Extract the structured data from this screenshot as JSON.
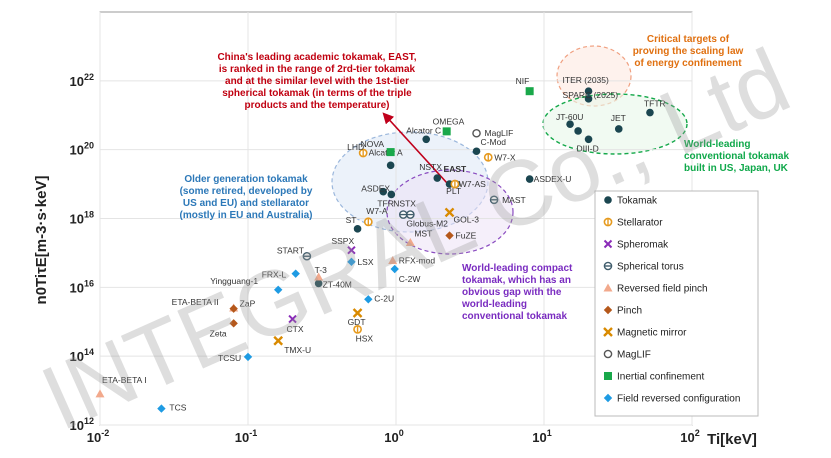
{
  "chart_data": {
    "type": "scatter",
    "xlabel": "Ti[keV]",
    "ylabel": "n0TiτE[m-3·s·keV]",
    "x_scale": "log",
    "y_scale": "log",
    "xlim": [
      0.01,
      100
    ],
    "ylim": [
      1000000000000.0,
      1e+24
    ],
    "x_ticks": [
      {
        "value": 0.01,
        "base": "10",
        "exp": "-2"
      },
      {
        "value": 0.1,
        "base": "10",
        "exp": "-1"
      },
      {
        "value": 1,
        "base": "10",
        "exp": "0"
      },
      {
        "value": 10,
        "base": "10",
        "exp": "1"
      },
      {
        "value": 100,
        "base": "10",
        "exp": "2"
      }
    ],
    "y_ticks": [
      {
        "value": 1000000000000.0,
        "base": "10",
        "exp": "12"
      },
      {
        "value": 100000000000000.0,
        "base": "10",
        "exp": "14"
      },
      {
        "value": 1e+16,
        "base": "10",
        "exp": "16"
      },
      {
        "value": 1e+18,
        "base": "10",
        "exp": "18"
      },
      {
        "value": 1e+20,
        "base": "10",
        "exp": "20"
      },
      {
        "value": 1e+22,
        "base": "10",
        "exp": "22"
      }
    ],
    "legend": {
      "position": "right",
      "entries": [
        {
          "key": "tokamak",
          "label": "Tokamak"
        },
        {
          "key": "stellarator",
          "label": "Stellarator"
        },
        {
          "key": "spheromak",
          "label": "Spheromak"
        },
        {
          "key": "spherical_torus",
          "label": "Spherical torus"
        },
        {
          "key": "rfp",
          "label": "Reversed field pinch"
        },
        {
          "key": "pinch",
          "label": "Pinch"
        },
        {
          "key": "mirror",
          "label": "Magnetic mirror"
        },
        {
          "key": "maglif",
          "label": "MagLIF"
        },
        {
          "key": "inertial",
          "label": "Inertial confinement"
        },
        {
          "key": "frc",
          "label": "Field reversed configuration"
        }
      ]
    },
    "colors": {
      "tokamak": "#1b4650",
      "stellarator": "#e69a1e",
      "spheromak": "#8a2bb8",
      "spherical_torus": "#3f5c6b",
      "rfp": "#f2a98c",
      "pinch": "#b5581b",
      "mirror": "#d98a00",
      "maglif": "#555555",
      "inertial": "#19a84a",
      "frc": "#1e9be3",
      "east_label": "#d0021b",
      "arrow": "#c0001b",
      "ann_red": "#c00010",
      "ann_orange": "#e07010",
      "ann_green": "#0fa84a",
      "ann_blue": "#2c78b8",
      "ann_purple": "#7a2cc0"
    },
    "points": [
      {
        "name": "ITER (2035)",
        "x": 20,
        "y": 5e+21,
        "type": "tokamak"
      },
      {
        "name": "SPARC (2025)",
        "x": 20,
        "y": 3e+21,
        "type": "tokamak"
      },
      {
        "name": "TFTR",
        "x": 52,
        "y": 1.2e+21,
        "type": "tokamak"
      },
      {
        "name": "JT-60U",
        "x": 15,
        "y": 5.5e+20,
        "type": "tokamak"
      },
      {
        "name": "",
        "x": 17,
        "y": 3.5e+20,
        "type": "tokamak"
      },
      {
        "name": "JET",
        "x": 32,
        "y": 4e+20,
        "type": "tokamak"
      },
      {
        "name": "DIII-D",
        "x": 20,
        "y": 2e+20,
        "type": "tokamak"
      },
      {
        "name": "ASDEX-U",
        "x": 8,
        "y": 1.4e+19,
        "type": "tokamak"
      },
      {
        "name": "Alcator C",
        "x": 1.6,
        "y": 2e+20,
        "type": "tokamak"
      },
      {
        "name": "C-Mod",
        "x": 3.5,
        "y": 9e+19,
        "type": "tokamak"
      },
      {
        "name": "Alcator A",
        "x": 0.92,
        "y": 3.5e+19,
        "type": "tokamak"
      },
      {
        "name": "NSTX",
        "x": 1.9,
        "y": 1.5e+19,
        "type": "tokamak"
      },
      {
        "name": "EAST",
        "x": 2.3,
        "y": 1e+19,
        "type": "tokamak"
      },
      {
        "name": "PLT",
        "x": 2.55,
        "y": 1e+19,
        "type": "tokamak"
      },
      {
        "name": "ASDEX",
        "x": 0.82,
        "y": 6e+18,
        "type": "tokamak"
      },
      {
        "name": "TFR",
        "x": 0.93,
        "y": 5e+18,
        "type": "tokamak"
      },
      {
        "name": "ST",
        "x": 0.55,
        "y": 5e+17,
        "type": "tokamak"
      },
      {
        "name": "ZT-40M",
        "x": 0.3,
        "y": 1.3e+16,
        "type": "tokamak"
      },
      {
        "name": "LHD",
        "x": 0.6,
        "y": 8e+19,
        "type": "stellarator"
      },
      {
        "name": "W7-X",
        "x": 4.2,
        "y": 6e+19,
        "type": "stellarator"
      },
      {
        "name": "W7-AS",
        "x": 2.5,
        "y": 1e+19,
        "type": "stellarator"
      },
      {
        "name": "W7-A",
        "x": 0.65,
        "y": 8e+17,
        "type": "stellarator"
      },
      {
        "name": "HSX",
        "x": 0.55,
        "y": 600000000000000.0,
        "type": "stellarator"
      },
      {
        "name": "SSPX",
        "x": 0.5,
        "y": 1.2e+17,
        "type": "spheromak"
      },
      {
        "name": "CTX",
        "x": 0.2,
        "y": 1200000000000000.0,
        "type": "spheromak"
      },
      {
        "name": "MAST",
        "x": 4.6,
        "y": 3.5e+18,
        "type": "spherical_torus"
      },
      {
        "name": "NSTX",
        "x": 1.12,
        "y": 1.3e+18,
        "type": "spherical_torus"
      },
      {
        "name": "Globus-M2",
        "x": 1.25,
        "y": 1.3e+18,
        "type": "spherical_torus"
      },
      {
        "name": "START",
        "x": 0.25,
        "y": 8e+16,
        "type": "spherical_torus"
      },
      {
        "name": "RFX-mod",
        "x": 0.95,
        "y": 6e+16,
        "type": "rfp"
      },
      {
        "name": "MST",
        "x": 1.25,
        "y": 2e+17,
        "type": "rfp"
      },
      {
        "name": "T-3",
        "x": 0.3,
        "y": 2e+16,
        "type": "rfp"
      },
      {
        "name": "ETA-BETA II",
        "x": 0.08,
        "y": 2500000000000000.0,
        "type": "rfp"
      },
      {
        "name": "ETA-BETA I",
        "x": 0.01,
        "y": 8000000000000.0,
        "type": "rfp"
      },
      {
        "name": "ZaP",
        "x": 0.08,
        "y": 2400000000000000.0,
        "type": "pinch"
      },
      {
        "name": "Zeta",
        "x": 0.08,
        "y": 900000000000000.0,
        "type": "pinch"
      },
      {
        "name": "FuZE",
        "x": 2.3,
        "y": 3.2e+17,
        "type": "pinch"
      },
      {
        "name": "GOL-3",
        "x": 2.3,
        "y": 1.5e+18,
        "type": "mirror"
      },
      {
        "name": "GDT",
        "x": 0.55,
        "y": 1800000000000000.0,
        "type": "mirror"
      },
      {
        "name": "TMX-U",
        "x": 0.16,
        "y": 280000000000000.0,
        "type": "mirror"
      },
      {
        "name": "MagLIF",
        "x": 3.5,
        "y": 3e+20,
        "type": "maglif"
      },
      {
        "name": "OMEGA",
        "x": 2.2,
        "y": 3.4e+20,
        "type": "inertial"
      },
      {
        "name": "NOVA",
        "x": 0.92,
        "y": 8.5e+19,
        "type": "inertial"
      },
      {
        "name": "NIF",
        "x": 8,
        "y": 5e+21,
        "type": "inertial"
      },
      {
        "name": "FRX-L",
        "x": 0.21,
        "y": 2.5e+16,
        "type": "frc"
      },
      {
        "name": "LSX",
        "x": 0.5,
        "y": 5.5e+16,
        "type": "frc"
      },
      {
        "name": "C-2W",
        "x": 0.98,
        "y": 3.4e+16,
        "type": "frc"
      },
      {
        "name": "Yingguang-1",
        "x": 0.16,
        "y": 8500000000000000.0,
        "type": "frc"
      },
      {
        "name": "C-2U",
        "x": 0.65,
        "y": 4500000000000000.0,
        "type": "frc"
      },
      {
        "name": "TCSU",
        "x": 0.1,
        "y": 95000000000000.0,
        "type": "frc"
      },
      {
        "name": "TCS",
        "x": 0.026,
        "y": 3000000000000.0,
        "type": "frc"
      }
    ],
    "annotations": {
      "china": [
        "China's leading academic tokamak, EAST,",
        "is ranked in the range of 2rd-tier tokamak",
        "and at the similar level with the 1st-tier",
        "spherical tokamak (in terms of the triple",
        "products and the temperature)"
      ],
      "critical": [
        "Critical targets of",
        "proving the scaling law",
        "of energy confinement"
      ],
      "world_conv": [
        "World-leading",
        "conventional tokamak",
        "built in US, Japan, UK"
      ],
      "older": [
        "Older generation tokamak",
        "(some retired, developed by",
        "US and EU) and stellarator",
        "(mostly in EU and Australia)"
      ],
      "compact": [
        "World-leading compact",
        "tokamak, which has an",
        "obvious gap with the",
        "world-leading",
        "conventional tokamak"
      ]
    },
    "watermark": "INTEGRAL Co., Ltd"
  }
}
